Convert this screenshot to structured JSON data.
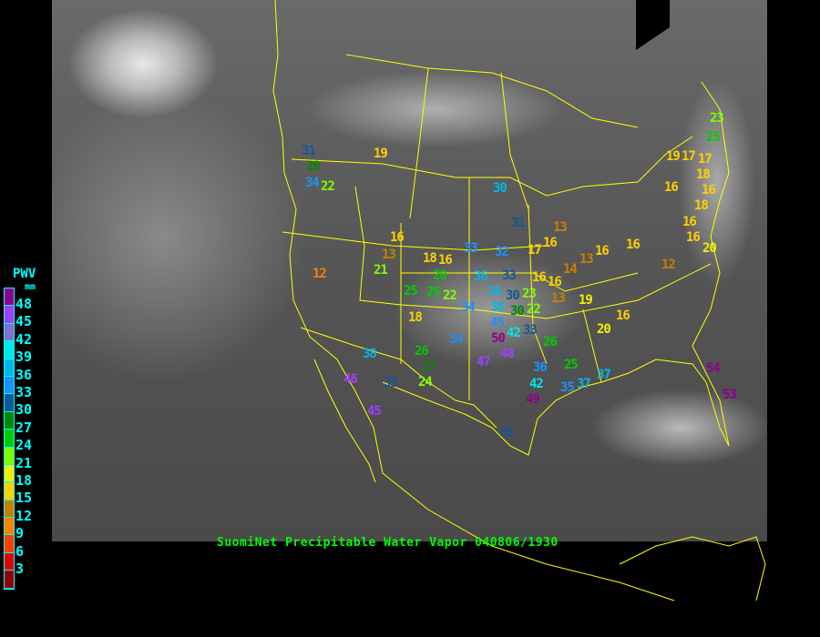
{
  "title": "SuomiNet Precipitable Water Vapor 040806/1930",
  "legend": {
    "title": "PWV",
    "unit": "mm",
    "ticks": [
      "48",
      "45",
      "42",
      "39",
      "36",
      "33",
      "30",
      "27",
      "24",
      "21",
      "18",
      "15",
      "12",
      "9",
      "6",
      "3"
    ],
    "colors": [
      "#900090",
      "#a040ff",
      "#8070d0",
      "#00e8e8",
      "#00b8e8",
      "#1e90ff",
      "#105898",
      "#008800",
      "#00cc00",
      "#80ff00",
      "#f0f000",
      "#ffd000",
      "#c88000",
      "#ff8000",
      "#ff4000",
      "#e00000",
      "#900000"
    ]
  },
  "map": {
    "boundary_color": "#ffff00"
  },
  "stations": [
    {
      "v": "31",
      "c": "#105898"
    },
    {
      "v": "29",
      "c": "#008800"
    },
    {
      "v": "34",
      "c": "#1e90ff"
    },
    {
      "v": "22",
      "c": "#80ff00"
    },
    {
      "v": "19",
      "c": "#ffd000"
    },
    {
      "v": "12",
      "c": "#ff8000"
    },
    {
      "v": "16",
      "c": "#ffd000"
    },
    {
      "v": "13",
      "c": "#c88000"
    },
    {
      "v": "21",
      "c": "#80ff00"
    },
    {
      "v": "18",
      "c": "#ffd000"
    },
    {
      "v": "16",
      "c": "#ffd000"
    },
    {
      "v": "28",
      "c": "#00cc00"
    },
    {
      "v": "26",
      "c": "#00cc00"
    },
    {
      "v": "22",
      "c": "#80ff00"
    },
    {
      "v": "25",
      "c": "#00cc00"
    },
    {
      "v": "18",
      "c": "#ffd000"
    },
    {
      "v": "33",
      "c": "#1e90ff"
    },
    {
      "v": "36",
      "c": "#00b8e8"
    },
    {
      "v": "34",
      "c": "#1e90ff"
    },
    {
      "v": "34",
      "c": "#1e90ff"
    },
    {
      "v": "33",
      "c": "#105898"
    },
    {
      "v": "32",
      "c": "#1e90ff"
    },
    {
      "v": "31",
      "c": "#105898"
    },
    {
      "v": "30",
      "c": "#00b8e8"
    },
    {
      "v": "38",
      "c": "#00b8e8"
    },
    {
      "v": "30",
      "c": "#105898"
    },
    {
      "v": "23",
      "c": "#80ff00"
    },
    {
      "v": "22",
      "c": "#80ff00"
    },
    {
      "v": "30",
      "c": "#008800"
    },
    {
      "v": "38",
      "c": "#00b8e8"
    },
    {
      "v": "45",
      "c": "#1e90ff"
    },
    {
      "v": "50",
      "c": "#900090"
    },
    {
      "v": "42",
      "c": "#00e8e8"
    },
    {
      "v": "33",
      "c": "#105898"
    },
    {
      "v": "48",
      "c": "#a040ff"
    },
    {
      "v": "26",
      "c": "#00cc00"
    },
    {
      "v": "47",
      "c": "#a040ff"
    },
    {
      "v": "36",
      "c": "#1e90ff"
    },
    {
      "v": "25",
      "c": "#00cc00"
    },
    {
      "v": "37",
      "c": "#00b8e8"
    },
    {
      "v": "42",
      "c": "#00e8e8"
    },
    {
      "v": "49",
      "c": "#900090"
    },
    {
      "v": "35",
      "c": "#1e90ff"
    },
    {
      "v": "37",
      "c": "#00b8e8"
    },
    {
      "v": "33",
      "c": "#105898"
    },
    {
      "v": "38",
      "c": "#00b8e8"
    },
    {
      "v": "26",
      "c": "#00cc00"
    },
    {
      "v": "27",
      "c": "#008800"
    },
    {
      "v": "24",
      "c": "#80ff00"
    },
    {
      "v": "33",
      "c": "#105898"
    },
    {
      "v": "46",
      "c": "#a040ff"
    },
    {
      "v": "45",
      "c": "#a040ff"
    },
    {
      "v": "54",
      "c": "#900090"
    },
    {
      "v": "53",
      "c": "#900090"
    },
    {
      "v": "13",
      "c": "#c88000"
    },
    {
      "v": "16",
      "c": "#ffd000"
    },
    {
      "v": "17",
      "c": "#ffd000"
    },
    {
      "v": "16",
      "c": "#ffd000"
    },
    {
      "v": "16",
      "c": "#ffd000"
    },
    {
      "v": "14",
      "c": "#c88000"
    },
    {
      "v": "13",
      "c": "#c88000"
    },
    {
      "v": "16",
      "c": "#ffd000"
    },
    {
      "v": "13",
      "c": "#c88000"
    },
    {
      "v": "19",
      "c": "#f0f000"
    },
    {
      "v": "16",
      "c": "#ffd000"
    },
    {
      "v": "12",
      "c": "#c88000"
    },
    {
      "v": "20",
      "c": "#f0f000"
    },
    {
      "v": "16",
      "c": "#ffd000"
    },
    {
      "v": "23",
      "c": "#80ff00"
    },
    {
      "v": "25",
      "c": "#00cc00"
    },
    {
      "v": "19",
      "c": "#ffd000"
    },
    {
      "v": "17",
      "c": "#ffd000"
    },
    {
      "v": "17",
      "c": "#ffd000"
    },
    {
      "v": "16",
      "c": "#ffd000"
    },
    {
      "v": "18",
      "c": "#ffd000"
    },
    {
      "v": "16",
      "c": "#ffd000"
    },
    {
      "v": "18",
      "c": "#ffd000"
    },
    {
      "v": "16",
      "c": "#ffd000"
    },
    {
      "v": "16",
      "c": "#ffd000"
    },
    {
      "v": "20",
      "c": "#f0f000"
    }
  ]
}
